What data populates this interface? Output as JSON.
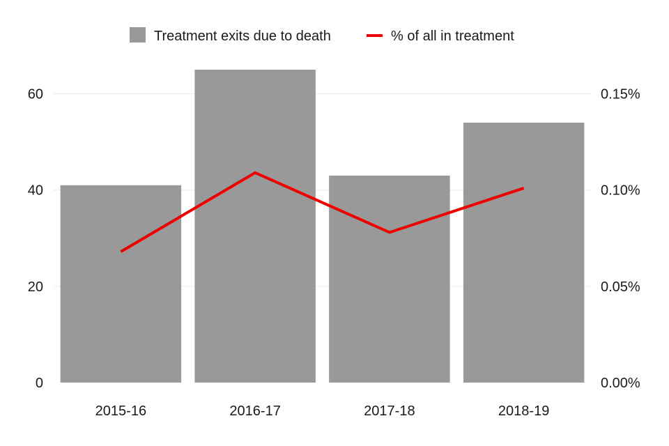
{
  "chart_data": {
    "type": "bar",
    "categories": [
      "2015-16",
      "2016-17",
      "2017-18",
      "2018-19"
    ],
    "series": [
      {
        "name": "Treatment exits due to death",
        "type": "bar",
        "axis": "left",
        "color": "#999999",
        "values": [
          41,
          65,
          43,
          54
        ]
      },
      {
        "name": "% of all in treatment",
        "type": "line",
        "axis": "right",
        "color": "#ee0000",
        "values": [
          0.068,
          0.109,
          0.078,
          0.101
        ]
      }
    ],
    "y_left": {
      "ylim": [
        0,
        65
      ],
      "ticks": [
        0,
        20,
        40,
        60
      ],
      "tick_labels": [
        "0",
        "20",
        "40",
        "60"
      ]
    },
    "y_right": {
      "ylim": [
        0,
        0.1625
      ],
      "ticks": [
        0,
        0.05,
        0.1,
        0.15
      ],
      "tick_labels": [
        "0.00%",
        "0.05%",
        "0.10%",
        "0.15%"
      ]
    },
    "legend": {
      "position": "top",
      "entries": [
        "Treatment exits due to death",
        "% of all in treatment"
      ]
    },
    "grid": true
  }
}
